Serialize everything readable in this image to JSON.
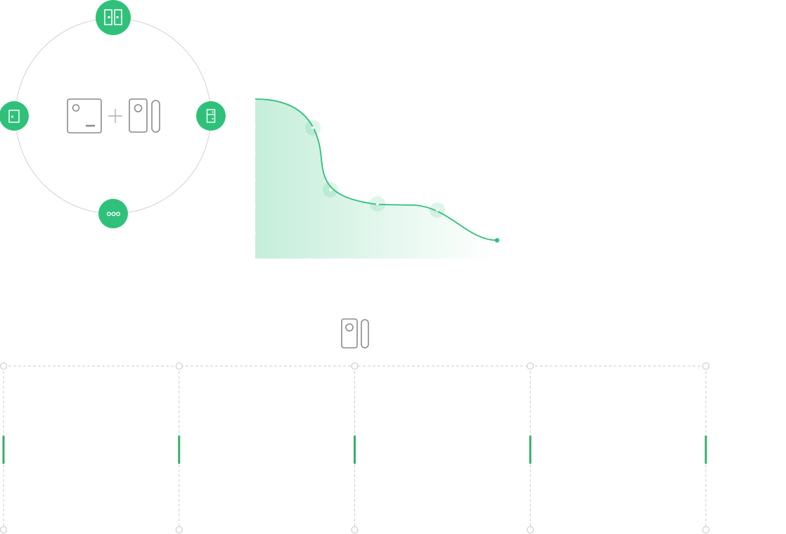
{
  "colors": {
    "accent": "#2fc17a",
    "outline": "#8a8a8a",
    "ring": "#d2d2d2",
    "guide": "#cccccc",
    "marker": "#3aae6a"
  },
  "hub": {
    "center_devices": [
      "hub-device-icon",
      "plus-icon",
      "contact-sensor-icon"
    ],
    "orbit_icons": [
      "double-door-icon",
      "single-door-icon",
      "cabinet-icon",
      "more-icon"
    ]
  },
  "curve": {
    "points": 5,
    "end_marker": true
  },
  "timeline": {
    "device_icon": "contact-sensor-icon",
    "columns": 5
  }
}
